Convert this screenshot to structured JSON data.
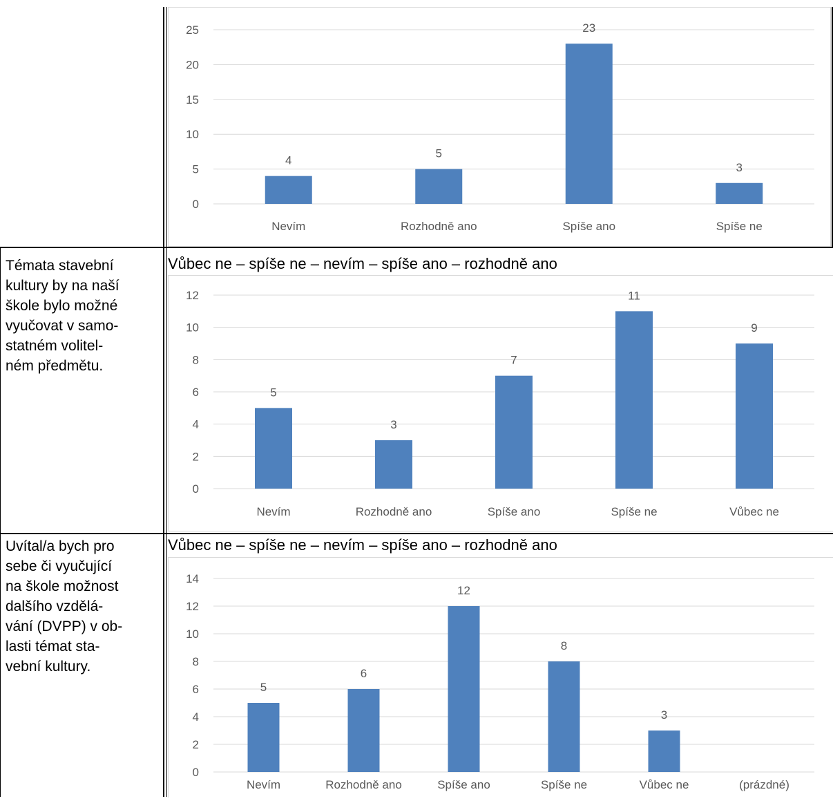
{
  "rows": [
    {
      "left_text": "",
      "header": "",
      "chart_index": 0
    },
    {
      "left_text": "Témata stavební kultury by na naší škole bylo možné vyučovat v samo-statném volitel-ném předmětu.",
      "left_lines": [
        "Témata stavební",
        "kultury by na naší",
        "škole bylo možné",
        "vyučovat v samo-",
        "statném volitel-",
        "ném předmětu."
      ],
      "header": "Vůbec ne – spíše ne – nevím – spíše ano – rozhodně ano",
      "chart_index": 1
    },
    {
      "left_text": "Uvítal/a bych pro sebe či vyučující na škole možnost dalšího vzdělá-vání (DVPP) v ob-lasti témat sta-vební kultury.",
      "left_lines": [
        "Uvítal/a bych pro",
        "sebe či vyučující",
        "na škole možnost",
        "dalšího vzdělá-",
        "vání (DVPP) v ob-",
        "lasti témat sta-",
        "vební kultury."
      ],
      "header": "Vůbec ne – spíše ne – nevím – spíše ano – rozhodně ano",
      "chart_index": 2
    }
  ],
  "colors": {
    "bar": "#4f81bd",
    "grid": "#d9d9d9",
    "text": "#595959"
  },
  "chart_data": [
    {
      "type": "bar",
      "categories": [
        "Nevím",
        "Rozhodně ano",
        "Spíše ano",
        "Spíše ne"
      ],
      "values": [
        4,
        5,
        23,
        3
      ],
      "ylim": [
        0,
        25
      ],
      "yticks": [
        0,
        5,
        10,
        15,
        20,
        25
      ],
      "data_labels": true,
      "grid": true,
      "title": "",
      "xlabel": "",
      "ylabel": ""
    },
    {
      "type": "bar",
      "categories": [
        "Nevím",
        "Rozhodně ano",
        "Spíše ano",
        "Spíše ne",
        "Vůbec ne"
      ],
      "values": [
        5,
        3,
        7,
        11,
        9
      ],
      "ylim": [
        0,
        12
      ],
      "yticks": [
        0,
        2,
        4,
        6,
        8,
        10,
        12
      ],
      "data_labels": true,
      "grid": true,
      "title": "",
      "xlabel": "",
      "ylabel": ""
    },
    {
      "type": "bar",
      "categories": [
        "Nevím",
        "Rozhodně ano",
        "Spíše ano",
        "Spíše ne",
        "Vůbec ne",
        "(prázdné)"
      ],
      "values": [
        5,
        6,
        12,
        8,
        3,
        null
      ],
      "ylim": [
        0,
        14
      ],
      "yticks": [
        0,
        2,
        4,
        6,
        8,
        10,
        12,
        14
      ],
      "data_labels": true,
      "grid": true,
      "title": "",
      "xlabel": "",
      "ylabel": ""
    }
  ]
}
